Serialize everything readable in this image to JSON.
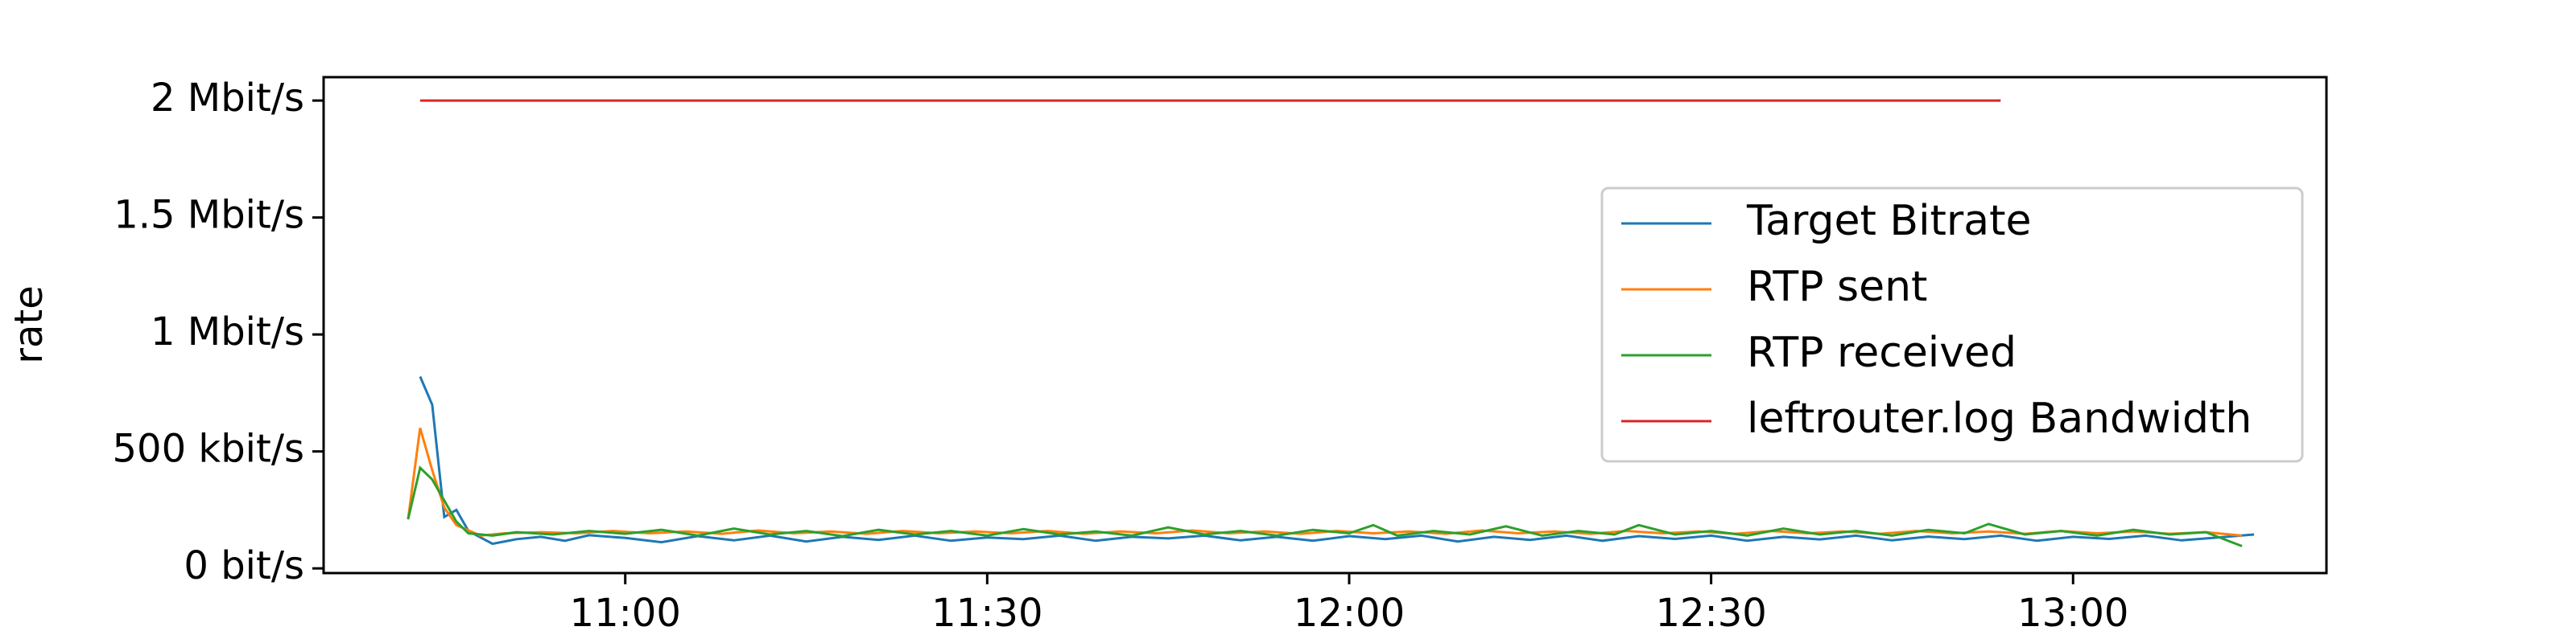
{
  "chart_data": {
    "type": "line",
    "title": "",
    "xlabel": "",
    "ylabel": "rate",
    "x_axis": {
      "type": "time",
      "min": "10:35",
      "max": "13:21",
      "ticks": [
        "11:00",
        "11:30",
        "12:00",
        "12:30",
        "13:00"
      ]
    },
    "y_axis": {
      "unit": "bit/s",
      "min": -20000,
      "max": 2100000,
      "ticks": [
        {
          "value": 0,
          "label": "0 bit/s"
        },
        {
          "value": 500000,
          "label": "500 kbit/s"
        },
        {
          "value": 1000000,
          "label": "1 Mbit/s"
        },
        {
          "value": 1500000,
          "label": "1.5 Mbit/s"
        },
        {
          "value": 2000000,
          "label": "2 Mbit/s"
        }
      ]
    },
    "grid": false,
    "legend": {
      "position": "right"
    },
    "series": [
      {
        "name": "Target Bitrate",
        "color": "#1f77b4",
        "points": [
          [
            "10:43",
            820000
          ],
          [
            "10:44",
            700000
          ],
          [
            "10:45",
            220000
          ],
          [
            "10:46",
            250000
          ],
          [
            "10:47",
            160000
          ],
          [
            "10:49",
            105000
          ],
          [
            "10:51",
            125000
          ],
          [
            "10:53",
            135000
          ],
          [
            "10:55",
            118000
          ],
          [
            "10:57",
            142000
          ],
          [
            "11:00",
            130000
          ],
          [
            "11:03",
            112000
          ],
          [
            "11:06",
            138000
          ],
          [
            "11:09",
            120000
          ],
          [
            "11:12",
            140000
          ],
          [
            "11:15",
            115000
          ],
          [
            "11:18",
            135000
          ],
          [
            "11:21",
            122000
          ],
          [
            "11:24",
            140000
          ],
          [
            "11:27",
            118000
          ],
          [
            "11:30",
            132000
          ],
          [
            "11:33",
            125000
          ],
          [
            "11:36",
            140000
          ],
          [
            "11:39",
            118000
          ],
          [
            "11:42",
            135000
          ],
          [
            "11:45",
            128000
          ],
          [
            "11:48",
            140000
          ],
          [
            "11:51",
            120000
          ],
          [
            "11:54",
            135000
          ],
          [
            "11:57",
            118000
          ],
          [
            "12:00",
            138000
          ],
          [
            "12:03",
            125000
          ],
          [
            "12:06",
            140000
          ],
          [
            "12:09",
            115000
          ],
          [
            "12:12",
            135000
          ],
          [
            "12:15",
            122000
          ],
          [
            "12:18",
            140000
          ],
          [
            "12:21",
            118000
          ],
          [
            "12:24",
            138000
          ],
          [
            "12:27",
            126000
          ],
          [
            "12:30",
            140000
          ],
          [
            "12:33",
            118000
          ],
          [
            "12:36",
            135000
          ],
          [
            "12:39",
            124000
          ],
          [
            "12:42",
            140000
          ],
          [
            "12:45",
            120000
          ],
          [
            "12:48",
            136000
          ],
          [
            "12:51",
            125000
          ],
          [
            "12:54",
            140000
          ],
          [
            "12:57",
            118000
          ],
          [
            "13:00",
            135000
          ],
          [
            "13:03",
            126000
          ],
          [
            "13:06",
            140000
          ],
          [
            "13:09",
            120000
          ],
          [
            "13:12",
            132000
          ],
          [
            "13:15",
            145000
          ]
        ]
      },
      {
        "name": "RTP sent",
        "color": "#ff7f0e",
        "points": [
          [
            "10:42",
            210000
          ],
          [
            "10:43",
            600000
          ],
          [
            "10:44",
            420000
          ],
          [
            "10:45",
            260000
          ],
          [
            "10:46",
            185000
          ],
          [
            "10:48",
            140000
          ],
          [
            "10:50",
            150000
          ],
          [
            "10:53",
            155000
          ],
          [
            "10:56",
            150000
          ],
          [
            "10:59",
            160000
          ],
          [
            "11:02",
            150000
          ],
          [
            "11:05",
            158000
          ],
          [
            "11:08",
            148000
          ],
          [
            "11:11",
            162000
          ],
          [
            "11:14",
            150000
          ],
          [
            "11:17",
            158000
          ],
          [
            "11:20",
            148000
          ],
          [
            "11:23",
            160000
          ],
          [
            "11:26",
            150000
          ],
          [
            "11:29",
            158000
          ],
          [
            "11:32",
            150000
          ],
          [
            "11:35",
            160000
          ],
          [
            "11:38",
            148000
          ],
          [
            "11:41",
            158000
          ],
          [
            "11:44",
            150000
          ],
          [
            "11:47",
            162000
          ],
          [
            "11:50",
            150000
          ],
          [
            "11:53",
            158000
          ],
          [
            "11:56",
            148000
          ],
          [
            "11:59",
            160000
          ],
          [
            "12:02",
            150000
          ],
          [
            "12:05",
            158000
          ],
          [
            "12:08",
            148000
          ],
          [
            "12:11",
            162000
          ],
          [
            "12:14",
            150000
          ],
          [
            "12:17",
            158000
          ],
          [
            "12:20",
            148000
          ],
          [
            "12:23",
            160000
          ],
          [
            "12:26",
            150000
          ],
          [
            "12:29",
            158000
          ],
          [
            "12:32",
            148000
          ],
          [
            "12:35",
            160000
          ],
          [
            "12:38",
            150000
          ],
          [
            "12:41",
            158000
          ],
          [
            "12:44",
            148000
          ],
          [
            "12:47",
            160000
          ],
          [
            "12:50",
            150000
          ],
          [
            "12:53",
            158000
          ],
          [
            "12:56",
            148000
          ],
          [
            "12:59",
            160000
          ],
          [
            "13:02",
            150000
          ],
          [
            "13:05",
            158000
          ],
          [
            "13:08",
            148000
          ],
          [
            "13:11",
            155000
          ],
          [
            "13:14",
            140000
          ]
        ]
      },
      {
        "name": "RTP received",
        "color": "#2ca02c",
        "points": [
          [
            "10:42",
            210000
          ],
          [
            "10:43",
            430000
          ],
          [
            "10:44",
            380000
          ],
          [
            "10:45",
            290000
          ],
          [
            "10:46",
            200000
          ],
          [
            "10:47",
            150000
          ],
          [
            "10:49",
            140000
          ],
          [
            "10:51",
            155000
          ],
          [
            "10:54",
            145000
          ],
          [
            "10:57",
            160000
          ],
          [
            "11:00",
            148000
          ],
          [
            "11:03",
            165000
          ],
          [
            "11:06",
            140000
          ],
          [
            "11:09",
            170000
          ],
          [
            "11:12",
            145000
          ],
          [
            "11:15",
            160000
          ],
          [
            "11:18",
            138000
          ],
          [
            "11:21",
            165000
          ],
          [
            "11:24",
            145000
          ],
          [
            "11:27",
            160000
          ],
          [
            "11:30",
            140000
          ],
          [
            "11:33",
            168000
          ],
          [
            "11:36",
            145000
          ],
          [
            "11:39",
            158000
          ],
          [
            "11:42",
            140000
          ],
          [
            "11:45",
            175000
          ],
          [
            "11:48",
            145000
          ],
          [
            "11:51",
            160000
          ],
          [
            "11:54",
            140000
          ],
          [
            "11:57",
            165000
          ],
          [
            "12:00",
            150000
          ],
          [
            "12:02",
            185000
          ],
          [
            "12:04",
            140000
          ],
          [
            "12:07",
            160000
          ],
          [
            "12:10",
            145000
          ],
          [
            "12:13",
            180000
          ],
          [
            "12:16",
            140000
          ],
          [
            "12:19",
            160000
          ],
          [
            "12:22",
            145000
          ],
          [
            "12:24",
            185000
          ],
          [
            "12:27",
            145000
          ],
          [
            "12:30",
            160000
          ],
          [
            "12:33",
            140000
          ],
          [
            "12:36",
            170000
          ],
          [
            "12:39",
            145000
          ],
          [
            "12:42",
            160000
          ],
          [
            "12:45",
            140000
          ],
          [
            "12:48",
            165000
          ],
          [
            "12:51",
            150000
          ],
          [
            "12:53",
            190000
          ],
          [
            "12:56",
            145000
          ],
          [
            "12:59",
            160000
          ],
          [
            "13:02",
            140000
          ],
          [
            "13:05",
            165000
          ],
          [
            "13:08",
            145000
          ],
          [
            "13:11",
            155000
          ],
          [
            "13:14",
            95000
          ]
        ]
      },
      {
        "name": "leftrouter.log Bandwidth",
        "color": "#d62728",
        "points": [
          [
            "10:43",
            2000000
          ],
          [
            "12:54",
            2000000
          ]
        ]
      }
    ]
  }
}
